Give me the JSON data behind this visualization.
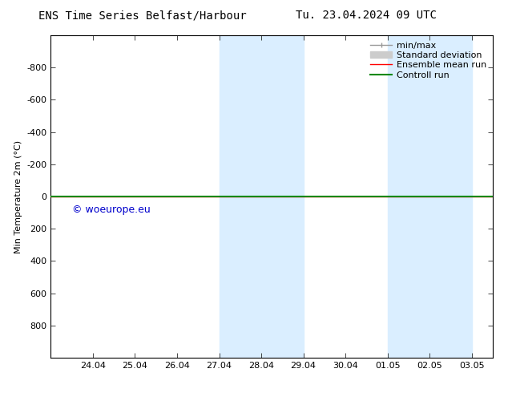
{
  "title": "ENS Time Series Belfast/Harbour",
  "title2": "Tu. 23.04.2024 09 UTC",
  "ylabel": "Min Temperature 2m (°C)",
  "ylim": [
    -1000,
    1000
  ],
  "yticks": [
    -800,
    -600,
    -400,
    -200,
    0,
    200,
    400,
    600,
    800
  ],
  "xtick_labels": [
    "24.04",
    "25.04",
    "26.04",
    "27.04",
    "28.04",
    "29.04",
    "30.04",
    "01.05",
    "02.05",
    "03.05"
  ],
  "watermark": "© woeurope.eu",
  "watermark_color": "#0000cc",
  "bg_color": "#ffffff",
  "plot_bg_color": "#ffffff",
  "shaded_color": "#daeeff",
  "green_line_color": "#008800",
  "red_line_color": "#ff0000",
  "legend_items": [
    {
      "label": "min/max",
      "color": "#999999",
      "lw": 1.0
    },
    {
      "label": "Standard deviation",
      "color": "#cccccc",
      "lw": 6
    },
    {
      "label": "Ensemble mean run",
      "color": "#ff0000",
      "lw": 1.0
    },
    {
      "label": "Controll run",
      "color": "#008800",
      "lw": 1.5
    }
  ],
  "tick_label_fontsize": 8,
  "label_fontsize": 8,
  "title_fontsize": 10,
  "legend_fontsize": 8
}
